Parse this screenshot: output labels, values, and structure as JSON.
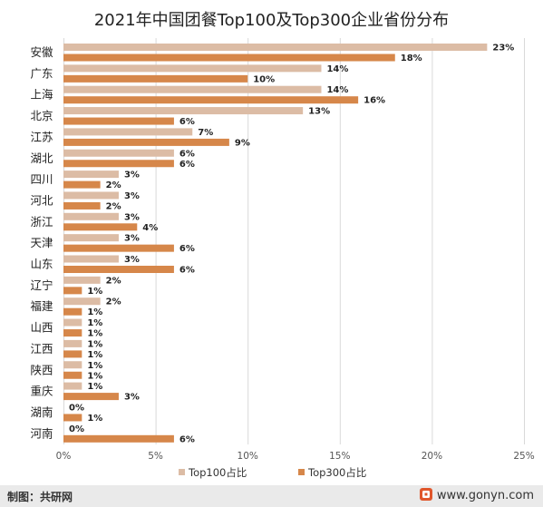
{
  "colors": {
    "top100": "#dcbca5",
    "top300": "#d6874a",
    "grid": "#d9d9d9",
    "text": "#222222"
  },
  "chart_data": {
    "type": "bar",
    "orientation": "horizontal",
    "title": "2021年中国团餐Top100及Top300企业省份分布",
    "categories": [
      "安徽",
      "广东",
      "上海",
      "北京",
      "江苏",
      "湖北",
      "四川",
      "河北",
      "浙江",
      "天津",
      "山东",
      "辽宁",
      "福建",
      "山西",
      "江西",
      "陕西",
      "重庆",
      "湖南",
      "河南"
    ],
    "series": [
      {
        "name": "Top100占比",
        "values": [
          23,
          14,
          14,
          13,
          7,
          6,
          3,
          3,
          3,
          3,
          3,
          2,
          2,
          1,
          1,
          1,
          1,
          0,
          0
        ],
        "labels": [
          "23%",
          "14%",
          "14%",
          "13%",
          "7%",
          "6%",
          "3%",
          "3%",
          "3%",
          "3%",
          "3%",
          "2%",
          "2%",
          "1%",
          "1%",
          "1%",
          "1%",
          "0%",
          "0%"
        ]
      },
      {
        "name": "Top300占比",
        "values": [
          18,
          10,
          16,
          6,
          9,
          6,
          2,
          2,
          4,
          6,
          6,
          1,
          1,
          1,
          1,
          1,
          3,
          1,
          6
        ],
        "labels": [
          "18%",
          "10%",
          "16%",
          "6%",
          "9%",
          "6%",
          "2%",
          "2%",
          "4%",
          "6%",
          "6%",
          "1%",
          "1%",
          "1%",
          "1%",
          "1%",
          "3%",
          "1%",
          "6%"
        ]
      }
    ],
    "xlim": [
      0,
      25
    ],
    "xticks": [
      0,
      5,
      10,
      15,
      20,
      25
    ],
    "xtick_labels": [
      "0%",
      "5%",
      "10%",
      "15%",
      "20%",
      "25%"
    ],
    "grid": "vertical",
    "legend": "bottom"
  },
  "footer": {
    "source": "制图：共研网",
    "site": "www.gonyn.com"
  }
}
